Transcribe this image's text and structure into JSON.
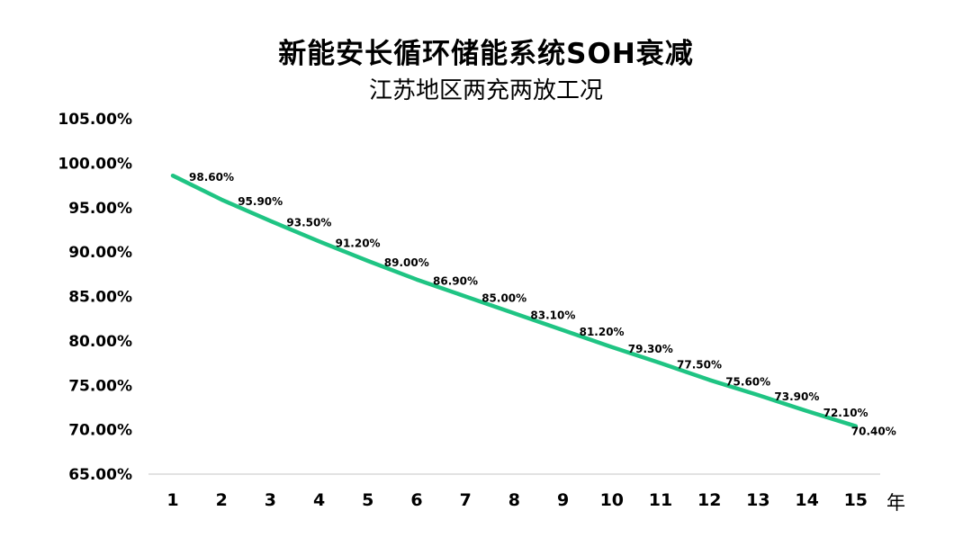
{
  "chart_data": {
    "type": "line",
    "title": "新能安长循环储能系统SOH衰减",
    "subtitle": "江苏地区两充两放工况",
    "x_unit": "年",
    "x": [
      1,
      2,
      3,
      4,
      5,
      6,
      7,
      8,
      9,
      10,
      11,
      12,
      13,
      14,
      15
    ],
    "series": [
      {
        "values": [
          98.6,
          95.9,
          93.5,
          91.2,
          89.0,
          86.9,
          85.0,
          83.1,
          81.2,
          79.3,
          77.5,
          75.6,
          73.9,
          72.1,
          70.4
        ],
        "data_labels": [
          "98.60%",
          "95.90%",
          "93.50%",
          "91.20%",
          "89.00%",
          "86.90%",
          "85.00%",
          "83.10%",
          "81.20%",
          "79.30%",
          "77.50%",
          "75.60%",
          "73.90%",
          "72.10%",
          "70.40%"
        ]
      }
    ],
    "y_ticks": [
      "105.00%",
      "100.00%",
      "95.00%",
      "90.00%",
      "85.00%",
      "80.00%",
      "75.00%",
      "70.00%",
      "65.00%"
    ],
    "ylim": [
      65,
      105
    ],
    "grid": false,
    "legend": "none",
    "line_color": "#1fc483"
  }
}
